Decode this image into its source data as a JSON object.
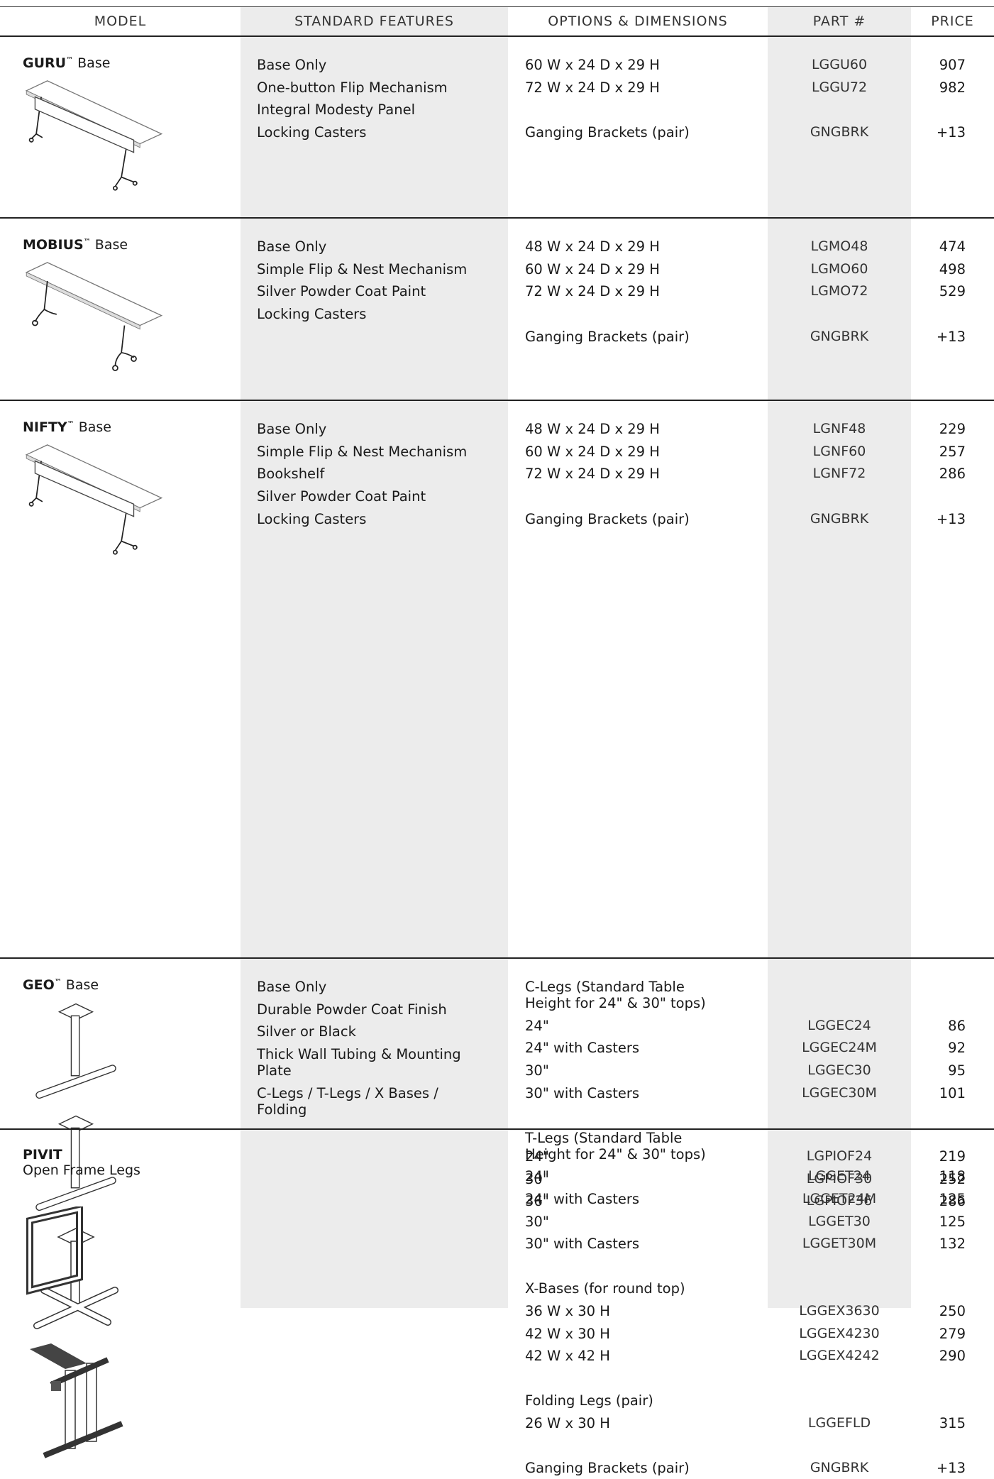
{
  "header": {
    "columns": [
      "MODEL",
      "STANDARD FEATURES",
      "OPTIONS & DIMENSIONS",
      "PART #",
      "PRICE"
    ]
  },
  "rows": [
    {
      "model": "GURU",
      "mark": "™",
      "suffix": "Base",
      "features": [
        "Base Only",
        "One-button Flip Mechanism",
        "Integral Modesty Panel",
        "Locking Casters"
      ],
      "groups": [
        {
          "items": [
            {
              "label": "60 W x 24 D x 29 H",
              "part": "LGGU60",
              "price": 907
            },
            {
              "label": "72 W x 24 D x 29 H",
              "part": "LGGU72",
              "price": 982
            }
          ]
        },
        {
          "items": [
            {
              "label": "Ganging Brackets (pair)",
              "part": "GNGBRK",
              "price": "+13"
            }
          ]
        }
      ]
    },
    {
      "model": "MOBIUS",
      "mark": "™",
      "suffix": "Base",
      "features": [
        "Base Only",
        "Simple Flip & Nest Mechanism",
        "Silver Powder Coat Paint",
        "Locking Casters"
      ],
      "groups": [
        {
          "items": [
            {
              "label": "48 W x 24 D x 29 H",
              "part": "LGMO48",
              "price": 474
            },
            {
              "label": "60 W x 24 D x 29 H",
              "part": "LGMO60",
              "price": 498
            },
            {
              "label": "72 W x 24 D x 29 H",
              "part": "LGMO72",
              "price": 529
            }
          ]
        },
        {
          "items": [
            {
              "label": "Ganging Brackets (pair)",
              "part": "GNGBRK",
              "price": "+13"
            }
          ]
        }
      ]
    },
    {
      "model": "NIFTY",
      "mark": "™",
      "suffix": "Base",
      "features": [
        "Base Only",
        "Simple Flip & Nest Mechanism",
        "Bookshelf",
        "Silver Powder Coat Paint",
        "Locking Casters"
      ],
      "groups": [
        {
          "items": [
            {
              "label": "48 W x 24 D x 29 H",
              "part": "LGNF48",
              "price": 229
            },
            {
              "label": "60 W x 24 D x 29 H",
              "part": "LGNF60",
              "price": 257
            },
            {
              "label": "72 W x 24 D x 29 H",
              "part": "LGNF72",
              "price": 286
            }
          ]
        },
        {
          "items": [
            {
              "label": "Ganging Brackets (pair)",
              "part": "GNGBRK",
              "price": "+13"
            }
          ]
        }
      ]
    },
    {
      "model": "GEO",
      "mark": "™",
      "suffix": "Base",
      "features": [
        "Base Only",
        "Durable Powder Coat Finish",
        "Silver or Black",
        "Thick Wall Tubing & Mounting Plate",
        "C-Legs / T-Legs / X Bases / Folding"
      ],
      "groups": [
        {
          "heading": "C-Legs (Standard Table Height for 24\" & 30\" tops)",
          "items": [
            {
              "label": "24\"",
              "part": "LGGEC24",
              "price": 86
            },
            {
              "label": "24\" with Casters",
              "part": "LGGEC24M",
              "price": 92
            },
            {
              "label": "30\"",
              "part": "LGGEC30",
              "price": 95
            },
            {
              "label": "30\" with Casters",
              "part": "LGGEC30M",
              "price": 101
            }
          ]
        },
        {
          "heading": "T-Legs (Standard Table Height for 24\" & 30\" tops)",
          "items": [
            {
              "label": "24\"",
              "part": "LGGET24",
              "price": 118
            },
            {
              "label": "24\" with Casters",
              "part": "LGGET24M",
              "price": 125
            },
            {
              "label": "30\"",
              "part": "LGGET30",
              "price": 125
            },
            {
              "label": "30\" with Casters",
              "part": "LGGET30M",
              "price": 132
            }
          ]
        },
        {
          "heading": "X-Bases (for round top)",
          "items": [
            {
              "label": "36 W x 30 H",
              "part": "LGGEX3630",
              "price": 250
            },
            {
              "label": "42 W x 30 H",
              "part": "LGGEX4230",
              "price": 279
            },
            {
              "label": "42 W x 42 H",
              "part": "LGGEX4242",
              "price": 290
            }
          ]
        },
        {
          "heading": "Folding Legs (pair)",
          "items": [
            {
              "label": "26 W x 30 H",
              "part": "LGGEFLD",
              "price": 315
            }
          ]
        },
        {
          "items": [
            {
              "label": "Ganging Brackets (pair)",
              "part": "GNGBRK",
              "price": "+13"
            }
          ]
        }
      ]
    },
    {
      "model": "PIVIT",
      "suffix": "Open Frame Legs",
      "features": [],
      "groups": [
        {
          "items": [
            {
              "label": "24\"",
              "part": "LGPIOF24",
              "price": 219
            },
            {
              "label": "30\"",
              "part": "LGPIOF30",
              "price": 252
            },
            {
              "label": "36\"",
              "part": "LGPIOF36",
              "price": 286
            }
          ]
        }
      ]
    }
  ]
}
